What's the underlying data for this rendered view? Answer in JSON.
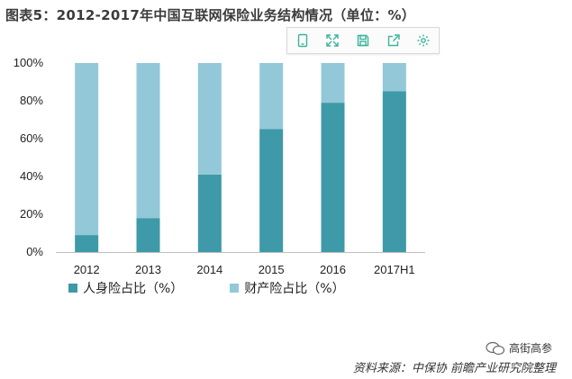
{
  "title": "图表5：2012-2017年中国互联网保险业务结构情况（单位：%）",
  "toolbar": {
    "icons": [
      "tablet-icon",
      "expand-icon",
      "save-icon",
      "share-icon",
      "settings-icon"
    ],
    "accent": "#3ab59a"
  },
  "chart_data": {
    "type": "bar",
    "stacked": true,
    "categories": [
      "2012",
      "2013",
      "2014",
      "2015",
      "2016",
      "2017H1"
    ],
    "series": [
      {
        "name": "人身险占比（%）",
        "values": [
          9,
          18,
          41,
          65,
          79,
          85
        ],
        "color": "#3e99a8"
      },
      {
        "name": "财产险占比（%）",
        "values": [
          91,
          82,
          59,
          35,
          21,
          15
        ],
        "color": "#93c8d8"
      }
    ],
    "ylim": [
      0,
      100
    ],
    "yticks": [
      "0%",
      "20%",
      "40%",
      "60%",
      "80%",
      "100%"
    ],
    "grid": false,
    "legend_position": "bottom-left"
  },
  "source": "资料来源：中保协 前瞻产业研究院整理",
  "account": "高街高参"
}
